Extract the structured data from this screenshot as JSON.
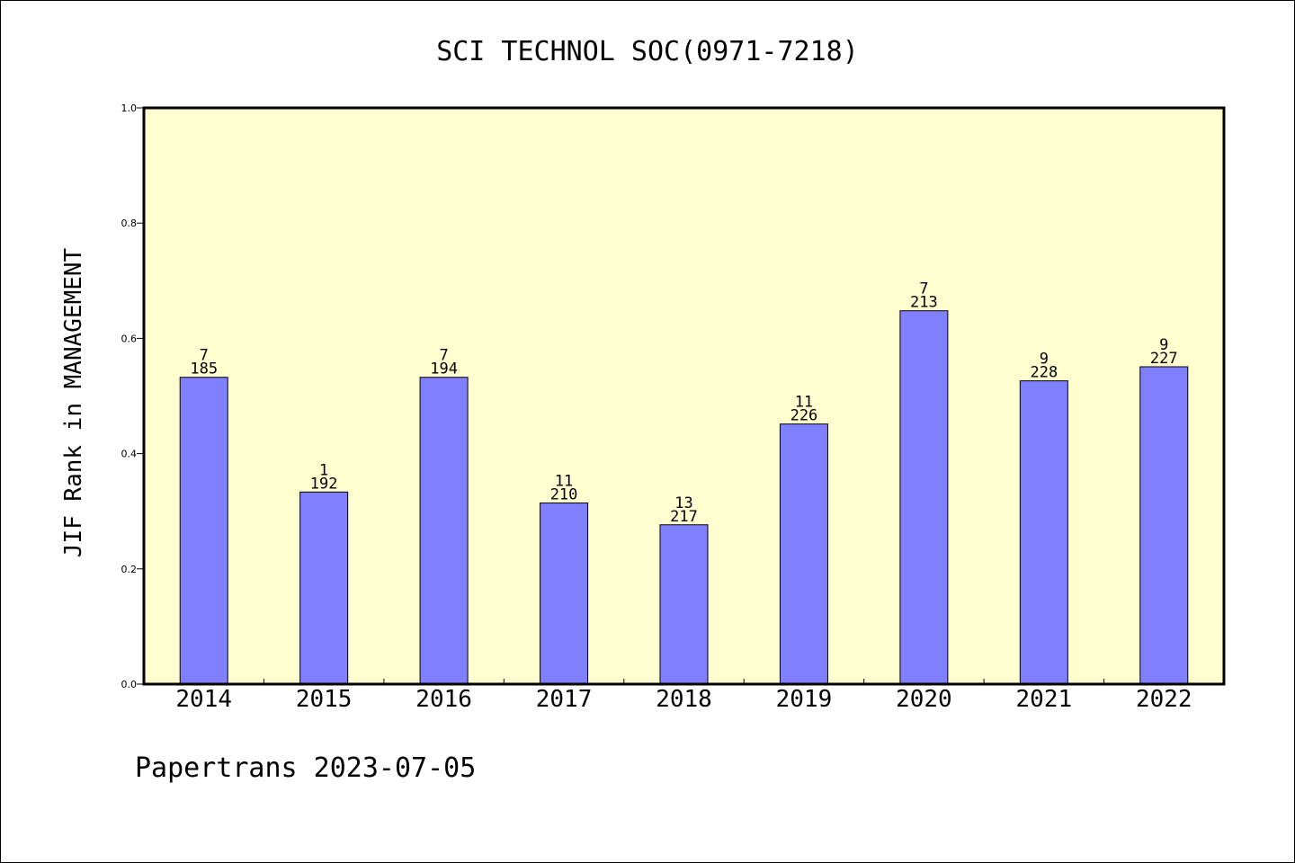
{
  "chart_data": {
    "type": "bar",
    "title": "SCI TECHNOL SOC(0971-7218)",
    "xlabel": "",
    "ylabel": "JIF Rank in MANAGEMENT",
    "ylim": [
      0,
      1.0
    ],
    "yticks": [
      "0.0",
      "0.2",
      "0.4",
      "0.6",
      "0.8",
      "1.0"
    ],
    "categories": [
      "2014",
      "2015",
      "2016",
      "2017",
      "2018",
      "2019",
      "2020",
      "2021",
      "2022"
    ],
    "values": [
      0.5324,
      0.3333,
      0.5324,
      0.3143,
      0.2765,
      0.4513,
      0.6479,
      0.5263,
      0.5507
    ],
    "rank_labels": [
      "7",
      "1",
      "7",
      "11",
      "13",
      "11",
      "7",
      "9",
      "9"
    ],
    "total_labels": [
      "185",
      "192",
      "194",
      "210",
      "217",
      "226",
      "213",
      "228",
      "227"
    ],
    "grid": false,
    "background_color": "#ffffd0",
    "bar_color": "#8080ff"
  },
  "footer": {
    "text": "Papertrans 2023-07-05"
  }
}
